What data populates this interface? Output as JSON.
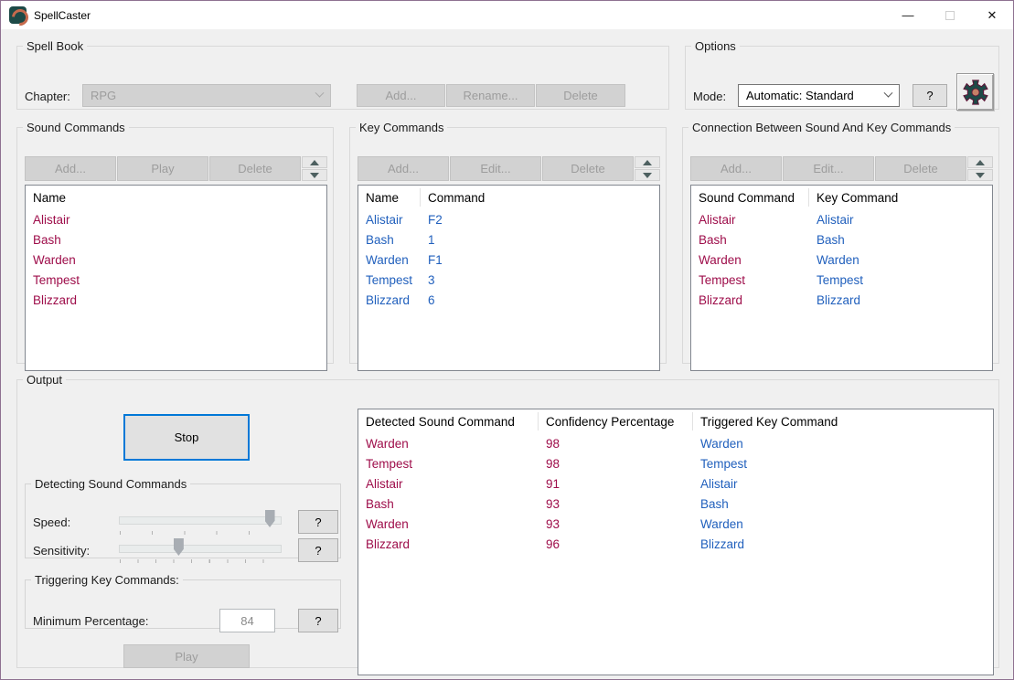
{
  "window": {
    "title": "SpellCaster",
    "minimize_glyph": "—",
    "close_glyph": "✕"
  },
  "spell_book": {
    "title": "Spell Book",
    "chapter_label": "Chapter:",
    "chapter_value": "RPG",
    "add": "Add...",
    "rename": "Rename...",
    "delete": "Delete"
  },
  "options": {
    "title": "Options",
    "mode_label": "Mode:",
    "mode_value": "Automatic: Standard",
    "help": "?"
  },
  "sound_commands": {
    "title": "Sound Commands",
    "add": "Add...",
    "play": "Play",
    "delete": "Delete",
    "header": "Name",
    "items": [
      "Alistair",
      "Bash",
      "Warden",
      "Tempest",
      "Blizzard"
    ]
  },
  "key_commands": {
    "title": "Key Commands",
    "add": "Add...",
    "edit": "Edit...",
    "delete": "Delete",
    "headers": [
      "Name",
      "Command"
    ],
    "items": [
      {
        "name": "Alistair",
        "command": "F2"
      },
      {
        "name": "Bash",
        "command": "1"
      },
      {
        "name": "Warden",
        "command": "F1"
      },
      {
        "name": "Tempest",
        "command": "3"
      },
      {
        "name": "Blizzard",
        "command": "6"
      }
    ]
  },
  "connections": {
    "title": "Connection Between Sound And Key Commands",
    "add": "Add...",
    "edit": "Edit...",
    "delete": "Delete",
    "headers": [
      "Sound Command",
      "Key Command"
    ],
    "items": [
      {
        "sound": "Alistair",
        "key": "Alistair"
      },
      {
        "sound": "Bash",
        "key": "Bash"
      },
      {
        "sound": "Warden",
        "key": "Warden"
      },
      {
        "sound": "Tempest",
        "key": "Tempest"
      },
      {
        "sound": "Blizzard",
        "key": "Blizzard"
      }
    ]
  },
  "output": {
    "title": "Output",
    "stop": "Stop",
    "play": "Play",
    "detecting": {
      "title": "Detecting Sound Commands",
      "speed_label": "Speed:",
      "sensitivity_label": "Sensitivity:",
      "speed_percent": 93,
      "sensitivity_percent": 37,
      "help": "?"
    },
    "triggering": {
      "title": "Triggering Key Commands:",
      "min_label": "Minimum Percentage:",
      "min_value": "84",
      "help": "?"
    },
    "table": {
      "headers": [
        "Detected Sound Command",
        "Confidency Percentage",
        "Triggered Key Command"
      ],
      "rows": [
        [
          "Warden",
          "98",
          "Warden"
        ],
        [
          "Tempest",
          "98",
          "Tempest"
        ],
        [
          "Alistair",
          "91",
          "Alistair"
        ],
        [
          "Bash",
          "93",
          "Bash"
        ],
        [
          "Warden",
          "93",
          "Warden"
        ],
        [
          "Blizzard",
          "96",
          "Blizzard"
        ]
      ]
    }
  },
  "colors": {
    "sound_text": "#9e0d4a",
    "key_text": "#2160bd",
    "focus_border": "#0078d7",
    "window_border": "#8e7191",
    "titlebar_bg": "#ffffff",
    "client_bg": "#f0f0f0"
  }
}
